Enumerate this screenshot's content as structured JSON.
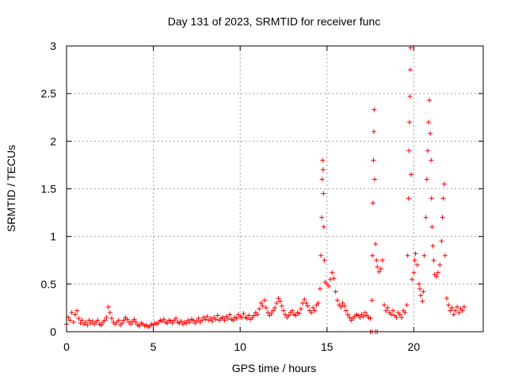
{
  "chart_data": {
    "type": "scatter",
    "title": "Day 131 of 2023, SRMTID for receiver func",
    "xlabel": "GPS time / hours",
    "ylabel": "SRMTID / TECUs",
    "xlim": [
      0,
      24
    ],
    "ylim": [
      0,
      3
    ],
    "xticks": [
      0,
      5,
      10,
      15,
      20
    ],
    "xtick_labels": [
      "0",
      "5",
      "10",
      "15",
      "20"
    ],
    "yticks": [
      0,
      0.5,
      1,
      1.5,
      2,
      2.5,
      3
    ],
    "ytick_labels": [
      "0",
      "0.5",
      "1",
      "1.5",
      "2",
      "2.5",
      "3"
    ],
    "grid": true,
    "marker": "+",
    "colors": {
      "series": "#ff0000",
      "grid": "#a0a0a0",
      "axis": "#000000"
    },
    "series": [
      {
        "name": "SRMTID",
        "points": [
          [
            0.0,
            0.08
          ],
          [
            0.1,
            0.15
          ],
          [
            0.2,
            0.12
          ],
          [
            0.3,
            0.2
          ],
          [
            0.4,
            0.1
          ],
          [
            0.5,
            0.18
          ],
          [
            0.6,
            0.22
          ],
          [
            0.7,
            0.14
          ],
          [
            0.8,
            0.09
          ],
          [
            0.9,
            0.12
          ],
          [
            1.0,
            0.08
          ],
          [
            1.1,
            0.1
          ],
          [
            1.2,
            0.07
          ],
          [
            1.3,
            0.12
          ],
          [
            1.4,
            0.09
          ],
          [
            1.5,
            0.11
          ],
          [
            1.6,
            0.08
          ],
          [
            1.7,
            0.1
          ],
          [
            1.8,
            0.12
          ],
          [
            1.9,
            0.08
          ],
          [
            2.0,
            0.07
          ],
          [
            2.1,
            0.1
          ],
          [
            2.2,
            0.12
          ],
          [
            2.3,
            0.15
          ],
          [
            2.4,
            0.26
          ],
          [
            2.5,
            0.2
          ],
          [
            2.6,
            0.14
          ],
          [
            2.7,
            0.1
          ],
          [
            2.8,
            0.08
          ],
          [
            2.9,
            0.1
          ],
          [
            3.0,
            0.12
          ],
          [
            3.1,
            0.07
          ],
          [
            3.2,
            0.09
          ],
          [
            3.3,
            0.12
          ],
          [
            3.4,
            0.15
          ],
          [
            3.5,
            0.13
          ],
          [
            3.6,
            0.1
          ],
          [
            3.7,
            0.08
          ],
          [
            3.8,
            0.11
          ],
          [
            3.9,
            0.13
          ],
          [
            4.0,
            0.1
          ],
          [
            4.1,
            0.07
          ],
          [
            4.2,
            0.06
          ],
          [
            4.3,
            0.09
          ],
          [
            4.4,
            0.08
          ],
          [
            4.5,
            0.06
          ],
          [
            4.6,
            0.07
          ],
          [
            4.7,
            0.05
          ],
          [
            4.8,
            0.06
          ],
          [
            4.9,
            0.08
          ],
          [
            5.0,
            0.07
          ],
          [
            5.1,
            0.09
          ],
          [
            5.2,
            0.08
          ],
          [
            5.3,
            0.1
          ],
          [
            5.4,
            0.12
          ],
          [
            5.5,
            0.11
          ],
          [
            5.6,
            0.13
          ],
          [
            5.7,
            0.1
          ],
          [
            5.8,
            0.09
          ],
          [
            5.9,
            0.12
          ],
          [
            6.0,
            0.11
          ],
          [
            6.1,
            0.09
          ],
          [
            6.2,
            0.12
          ],
          [
            6.3,
            0.14
          ],
          [
            6.4,
            0.1
          ],
          [
            6.5,
            0.09
          ],
          [
            6.6,
            0.11
          ],
          [
            6.7,
            0.08
          ],
          [
            6.8,
            0.1
          ],
          [
            6.9,
            0.09
          ],
          [
            7.0,
            0.12
          ],
          [
            7.1,
            0.1
          ],
          [
            7.2,
            0.13
          ],
          [
            7.3,
            0.12
          ],
          [
            7.4,
            0.09
          ],
          [
            7.5,
            0.11
          ],
          [
            7.6,
            0.14
          ],
          [
            7.7,
            0.1
          ],
          [
            7.8,
            0.12
          ],
          [
            7.9,
            0.15
          ],
          [
            8.0,
            0.13
          ],
          [
            8.1,
            0.16
          ],
          [
            8.2,
            0.12
          ],
          [
            8.3,
            0.14
          ],
          [
            8.4,
            0.11
          ],
          [
            8.5,
            0.15
          ],
          [
            8.6,
            0.13
          ],
          [
            8.7,
            0.17
          ],
          [
            8.8,
            0.12
          ],
          [
            8.9,
            0.14
          ],
          [
            9.0,
            0.15
          ],
          [
            9.1,
            0.12
          ],
          [
            9.2,
            0.16
          ],
          [
            9.3,
            0.14
          ],
          [
            9.4,
            0.18
          ],
          [
            9.5,
            0.13
          ],
          [
            9.6,
            0.12
          ],
          [
            9.7,
            0.15
          ],
          [
            9.8,
            0.14
          ],
          [
            9.9,
            0.18
          ],
          [
            10.0,
            0.16
          ],
          [
            10.1,
            0.15
          ],
          [
            10.2,
            0.19
          ],
          [
            10.3,
            0.15
          ],
          [
            10.4,
            0.14
          ],
          [
            10.5,
            0.17
          ],
          [
            10.6,
            0.13
          ],
          [
            10.7,
            0.15
          ],
          [
            10.8,
            0.17
          ],
          [
            10.9,
            0.2
          ],
          [
            11.0,
            0.18
          ],
          [
            11.1,
            0.24
          ],
          [
            11.2,
            0.3
          ],
          [
            11.3,
            0.27
          ],
          [
            11.4,
            0.33
          ],
          [
            11.5,
            0.25
          ],
          [
            11.6,
            0.2
          ],
          [
            11.7,
            0.17
          ],
          [
            11.8,
            0.19
          ],
          [
            11.9,
            0.22
          ],
          [
            12.0,
            0.25
          ],
          [
            12.1,
            0.3
          ],
          [
            12.2,
            0.35
          ],
          [
            12.3,
            0.32
          ],
          [
            12.4,
            0.27
          ],
          [
            12.5,
            0.22
          ],
          [
            12.6,
            0.18
          ],
          [
            12.7,
            0.15
          ],
          [
            12.8,
            0.17
          ],
          [
            12.9,
            0.2
          ],
          [
            13.0,
            0.22
          ],
          [
            13.1,
            0.18
          ],
          [
            13.2,
            0.17
          ],
          [
            13.3,
            0.2
          ],
          [
            13.4,
            0.19
          ],
          [
            13.5,
            0.24
          ],
          [
            13.6,
            0.3
          ],
          [
            13.7,
            0.34
          ],
          [
            13.8,
            0.3
          ],
          [
            13.9,
            0.27
          ],
          [
            14.0,
            0.22
          ],
          [
            14.1,
            0.2
          ],
          [
            14.2,
            0.25
          ],
          [
            14.3,
            0.22
          ],
          [
            14.4,
            0.28
          ],
          [
            14.5,
            0.3
          ],
          [
            14.6,
            0.45
          ],
          [
            14.65,
            0.8
          ],
          [
            14.7,
            1.2
          ],
          [
            14.72,
            1.6
          ],
          [
            14.75,
            1.8
          ],
          [
            14.78,
            1.7
          ],
          [
            14.8,
            1.45
          ],
          [
            14.82,
            1.1
          ],
          [
            14.85,
            0.75
          ],
          [
            14.9,
            0.52
          ],
          [
            15.0,
            0.5
          ],
          [
            15.1,
            0.48
          ],
          [
            15.2,
            0.55
          ],
          [
            15.3,
            0.62
          ],
          [
            15.4,
            0.56
          ],
          [
            15.5,
            0.42
          ],
          [
            15.6,
            0.33
          ],
          [
            15.7,
            0.28
          ],
          [
            15.8,
            0.26
          ],
          [
            15.9,
            0.3
          ],
          [
            16.0,
            0.27
          ],
          [
            16.1,
            0.22
          ],
          [
            16.2,
            0.18
          ],
          [
            16.3,
            0.15
          ],
          [
            16.4,
            0.12
          ],
          [
            16.5,
            0.14
          ],
          [
            16.6,
            0.16
          ],
          [
            16.7,
            0.18
          ],
          [
            16.8,
            0.17
          ],
          [
            16.9,
            0.15
          ],
          [
            17.0,
            0.18
          ],
          [
            17.1,
            0.16
          ],
          [
            17.2,
            0.2
          ],
          [
            17.3,
            0.17
          ],
          [
            17.4,
            0.15
          ],
          [
            17.5,
            0.14
          ],
          [
            17.6,
            0.33
          ],
          [
            17.62,
            0.8
          ],
          [
            17.65,
            1.35
          ],
          [
            17.68,
            1.8
          ],
          [
            17.7,
            2.1
          ],
          [
            17.72,
            2.33
          ],
          [
            17.75,
            1.6
          ],
          [
            17.8,
            0.92
          ],
          [
            17.85,
            0.75
          ],
          [
            17.9,
            0.68
          ],
          [
            18.0,
            0.63
          ],
          [
            18.1,
            0.66
          ],
          [
            18.2,
            0.75
          ],
          [
            18.3,
            0.28
          ],
          [
            18.4,
            0.22
          ],
          [
            18.5,
            0.25
          ],
          [
            18.6,
            0.2
          ],
          [
            18.7,
            0.18
          ],
          [
            18.8,
            0.22
          ],
          [
            18.9,
            0.17
          ],
          [
            19.0,
            0.15
          ],
          [
            19.1,
            0.2
          ],
          [
            19.2,
            0.18
          ],
          [
            19.3,
            0.15
          ],
          [
            19.4,
            0.22
          ],
          [
            19.5,
            0.2
          ],
          [
            19.6,
            0.28
          ],
          [
            19.65,
            0.8
          ],
          [
            19.7,
            1.4
          ],
          [
            19.72,
            1.9
          ],
          [
            19.75,
            2.2
          ],
          [
            19.78,
            2.47
          ],
          [
            19.8,
            2.75
          ],
          [
            19.82,
            2.98
          ],
          [
            19.85,
            1.65
          ],
          [
            19.9,
            0.55
          ],
          [
            20.0,
            0.62
          ],
          [
            20.05,
            0.75
          ],
          [
            20.1,
            0.82
          ],
          [
            20.2,
            0.7
          ],
          [
            20.3,
            0.5
          ],
          [
            20.35,
            0.45
          ],
          [
            20.4,
            0.38
          ],
          [
            20.5,
            0.32
          ],
          [
            20.55,
            0.42
          ],
          [
            20.6,
            0.8
          ],
          [
            20.7,
            1.2
          ],
          [
            20.75,
            1.6
          ],
          [
            20.8,
            1.9
          ],
          [
            20.85,
            2.2
          ],
          [
            20.9,
            2.43
          ],
          [
            20.95,
            2.08
          ],
          [
            21.0,
            1.8
          ],
          [
            21.02,
            1.4
          ],
          [
            21.05,
            1.1
          ],
          [
            21.1,
            0.9
          ],
          [
            21.15,
            0.75
          ],
          [
            21.2,
            0.6
          ],
          [
            21.3,
            0.58
          ],
          [
            21.4,
            0.62
          ],
          [
            21.5,
            0.7
          ],
          [
            21.6,
            0.95
          ],
          [
            21.65,
            1.2
          ],
          [
            21.7,
            1.4
          ],
          [
            21.75,
            1.55
          ],
          [
            21.8,
            0.8
          ],
          [
            21.9,
            0.35
          ],
          [
            22.0,
            0.28
          ],
          [
            22.1,
            0.22
          ],
          [
            22.2,
            0.25
          ],
          [
            22.3,
            0.18
          ],
          [
            22.4,
            0.22
          ],
          [
            22.5,
            0.26
          ],
          [
            22.6,
            0.2
          ],
          [
            22.7,
            0.24
          ],
          [
            22.8,
            0.22
          ],
          [
            22.9,
            0.26
          ],
          [
            17.5,
            0.0
          ],
          [
            17.6,
            0.0
          ],
          [
            17.8,
            0.0
          ],
          [
            17.9,
            0.0
          ]
        ]
      }
    ]
  }
}
